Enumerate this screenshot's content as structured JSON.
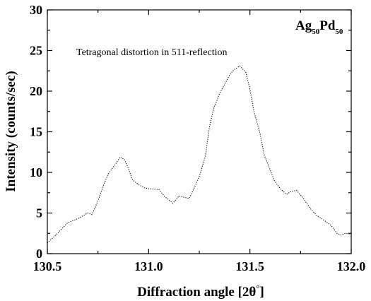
{
  "chart_data": {
    "type": "line",
    "title": "",
    "xlabel": "Diffraction angle [2θ°]",
    "ylabel": "Intensity (counts/sec)",
    "xlim": [
      130.5,
      132.0
    ],
    "ylim": [
      0,
      30
    ],
    "x_ticks": [
      130.5,
      131.0,
      131.5,
      132.0
    ],
    "x_tick_labels": [
      "130.5",
      "131.0",
      "131.5",
      "132.0"
    ],
    "y_ticks": [
      0,
      5,
      10,
      15,
      20,
      25,
      30
    ],
    "y_tick_labels": [
      "0",
      "5",
      "10",
      "15",
      "20",
      "25",
      "30"
    ],
    "grid": false,
    "line_style": "dotted",
    "line_color": "#000000",
    "annotation": "Tetragonal distortion in 511-reflection",
    "corner_label": {
      "a": "Ag",
      "a_sub": "50",
      "b": "Pd",
      "b_sub": "50"
    },
    "series": [
      {
        "x": [
          130.5,
          130.55,
          130.6,
          130.65,
          130.7,
          130.72,
          130.75,
          130.78,
          130.8,
          130.83,
          130.86,
          130.88,
          130.9,
          130.92,
          130.95,
          130.98,
          131.0,
          131.05,
          131.08,
          131.1,
          131.12,
          131.15,
          131.18,
          131.2,
          131.22,
          131.25,
          131.28,
          131.3,
          131.32,
          131.35,
          131.37,
          131.4,
          131.42,
          131.45,
          131.48,
          131.5,
          131.52,
          131.55,
          131.57,
          131.6,
          131.62,
          131.65,
          131.68,
          131.7,
          131.73,
          131.76,
          131.8,
          131.83,
          131.86,
          131.9,
          131.93,
          131.95,
          131.97,
          132.0
        ],
        "y": [
          1.3,
          2.5,
          3.8,
          4.3,
          5.0,
          4.8,
          6.5,
          8.6,
          9.8,
          10.8,
          11.9,
          11.6,
          10.5,
          9.1,
          8.5,
          8.1,
          8.0,
          7.9,
          7.0,
          6.6,
          6.2,
          7.1,
          6.9,
          6.8,
          7.8,
          9.5,
          12.0,
          15.5,
          17.8,
          19.7,
          20.6,
          22.0,
          22.6,
          23.1,
          22.3,
          20.2,
          17.5,
          14.8,
          12.2,
          10.3,
          9.0,
          8.0,
          7.3,
          7.6,
          7.8,
          6.9,
          5.5,
          4.7,
          4.2,
          3.5,
          2.5,
          2.3,
          2.5,
          2.4
        ]
      }
    ]
  }
}
